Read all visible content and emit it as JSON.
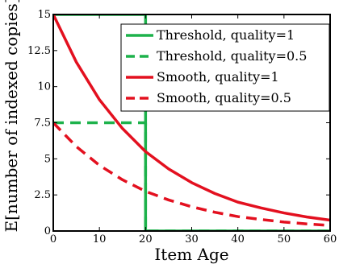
{
  "chart_data": {
    "type": "line",
    "xlabel": "Item Age",
    "ylabel": "E[number of indexed copies]",
    "xlim": [
      0,
      60
    ],
    "ylim": [
      0,
      15
    ],
    "xticks": [
      0,
      10,
      20,
      30,
      40,
      50,
      60
    ],
    "yticks": [
      0,
      2.5,
      5,
      7.5,
      10,
      12.5,
      15
    ],
    "xtick_labels": [
      "0",
      "10",
      "20",
      "30",
      "40",
      "50",
      "60"
    ],
    "ytick_labels": [
      "0",
      "2.5",
      "5",
      "7.5",
      "10",
      "12.5",
      "15"
    ],
    "grid": false,
    "legend_position": "top-right",
    "series": [
      {
        "name": "Threshold, quality=1",
        "color": "#1db24b",
        "dash": "solid",
        "x": [
          0,
          20,
          20,
          60
        ],
        "y": [
          15,
          15,
          0,
          0
        ]
      },
      {
        "name": "Threshold, quality=0.5",
        "color": "#1db24b",
        "dash": "dashed",
        "x": [
          0,
          20,
          20,
          60
        ],
        "y": [
          7.5,
          7.5,
          0,
          0
        ]
      },
      {
        "name": "Smooth, quality=1",
        "color": "#e3101f",
        "dash": "solid",
        "x": [
          0,
          5,
          10,
          15,
          20,
          25,
          30,
          35,
          40,
          45,
          50,
          55,
          60
        ],
        "y": [
          15,
          11.7,
          9.1,
          7.1,
          5.5,
          4.3,
          3.35,
          2.6,
          2.0,
          1.6,
          1.25,
          0.97,
          0.75
        ]
      },
      {
        "name": "Smooth, quality=0.5",
        "color": "#e3101f",
        "dash": "dashed",
        "x": [
          0,
          5,
          10,
          15,
          20,
          25,
          30,
          35,
          40,
          45,
          50,
          55,
          60
        ],
        "y": [
          7.5,
          5.85,
          4.55,
          3.55,
          2.75,
          2.15,
          1.68,
          1.3,
          1.0,
          0.8,
          0.62,
          0.49,
          0.38
        ]
      }
    ]
  }
}
